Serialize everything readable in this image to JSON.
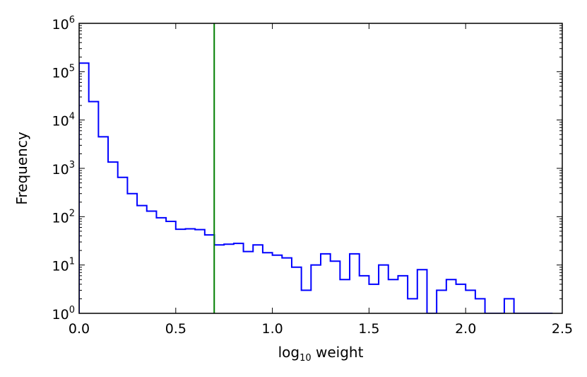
{
  "chart_data": {
    "type": "histogram",
    "title": "",
    "xlabel": {
      "base": "log",
      "subscript": "10",
      "rest": " weight"
    },
    "ylabel": "Frequency",
    "xlim": [
      0.0,
      2.5
    ],
    "ylim": [
      1,
      1000000
    ],
    "yscale": "log",
    "grid": false,
    "legend": "none",
    "x_ticks": [
      "0.0",
      "0.5",
      "1.0",
      "1.5",
      "2.0",
      "2.5"
    ],
    "y_ticks": [
      {
        "base": "10",
        "exp": "0"
      },
      {
        "base": "10",
        "exp": "1"
      },
      {
        "base": "10",
        "exp": "2"
      },
      {
        "base": "10",
        "exp": "3"
      },
      {
        "base": "10",
        "exp": "4"
      },
      {
        "base": "10",
        "exp": "5"
      },
      {
        "base": "10",
        "exp": "6"
      }
    ],
    "bin_width": 0.05,
    "bin_start": 0.0,
    "counts": [
      150000,
      24000,
      4500,
      1350,
      650,
      300,
      170,
      130,
      95,
      80,
      55,
      56,
      54,
      42,
      26,
      27,
      28,
      19,
      26,
      18,
      16,
      14,
      9,
      3,
      10,
      17,
      12,
      5,
      17,
      6,
      4,
      10,
      5,
      6,
      2,
      8,
      1,
      3,
      5,
      4,
      3,
      2,
      1,
      1,
      2,
      1,
      1,
      1,
      1
    ],
    "vline": {
      "x": 0.699
    },
    "colors": {
      "histogram": "#0000ff",
      "vline": "#007f00",
      "axes": "#000000"
    }
  }
}
